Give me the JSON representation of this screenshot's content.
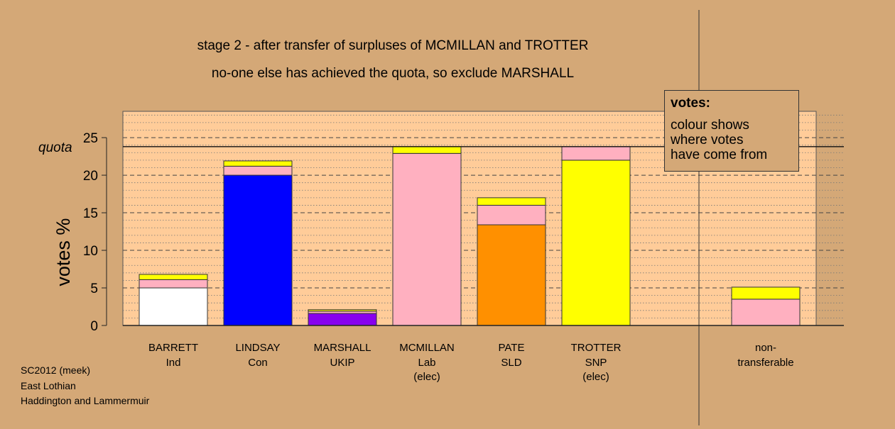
{
  "title_line1": "stage 2 - after transfer of surpluses of MCMILLAN and TROTTER",
  "title_line2": "no-one else has achieved the quota, so exclude MARSHALL",
  "credits": [
    "SC2012 (meek)",
    "East Lothian",
    "Haddington and Lammermuir"
  ],
  "legend": {
    "title": "votes:",
    "lines": [
      "colour shows",
      "where votes",
      "have come from"
    ]
  },
  "colors": {
    "background": "#d4a877",
    "plot_background": "#ffcc99",
    "Ind": "#ffffff",
    "Con": "#0000ff",
    "UKIP": "#8800ee",
    "Lab": "#ffb0c0",
    "SLD": "#ff9000",
    "SNP": "#ffff00"
  },
  "chart_data": {
    "type": "bar",
    "stacked": true,
    "ylabel": "votes %",
    "ylim": [
      0,
      28.5
    ],
    "yticks": [
      0,
      5,
      10,
      15,
      20,
      25
    ],
    "grid": true,
    "quota": {
      "label": "quota",
      "value": 23.8
    },
    "candidates": [
      {
        "name": "BARRETT",
        "party": "Ind",
        "note": "",
        "segments": [
          {
            "source": "Ind",
            "value": 5.0
          },
          {
            "source": "Lab",
            "value": 1.1
          },
          {
            "source": "SNP",
            "value": 0.7
          }
        ]
      },
      {
        "name": "LINDSAY",
        "party": "Con",
        "note": "",
        "segments": [
          {
            "source": "Con",
            "value": 20.0
          },
          {
            "source": "Lab",
            "value": 1.2
          },
          {
            "source": "SNP",
            "value": 0.7
          }
        ]
      },
      {
        "name": "MARSHALL",
        "party": "UKIP",
        "note": "",
        "segments": [
          {
            "source": "UKIP",
            "value": 1.6
          },
          {
            "source": "Lab",
            "value": 0.3
          },
          {
            "source": "SNP",
            "value": 0.2
          }
        ]
      },
      {
        "name": "MCMILLAN",
        "party": "Lab",
        "note": "(elec)",
        "segments": [
          {
            "source": "Lab",
            "value": 22.9
          },
          {
            "source": "SNP",
            "value": 0.9
          }
        ]
      },
      {
        "name": "PATE",
        "party": "SLD",
        "note": "",
        "segments": [
          {
            "source": "SLD",
            "value": 13.4
          },
          {
            "source": "Lab",
            "value": 2.6
          },
          {
            "source": "SNP",
            "value": 1.0
          }
        ]
      },
      {
        "name": "TROTTER",
        "party": "SNP",
        "note": "(elec)",
        "segments": [
          {
            "source": "SNP",
            "value": 22.0
          },
          {
            "source": "Lab",
            "value": 1.8
          }
        ]
      }
    ],
    "nontransferable": {
      "label_line1": "non-",
      "label_line2": "transferable",
      "segments": [
        {
          "source": "Lab",
          "value": 3.5
        },
        {
          "source": "SNP",
          "value": 1.6
        }
      ]
    }
  }
}
